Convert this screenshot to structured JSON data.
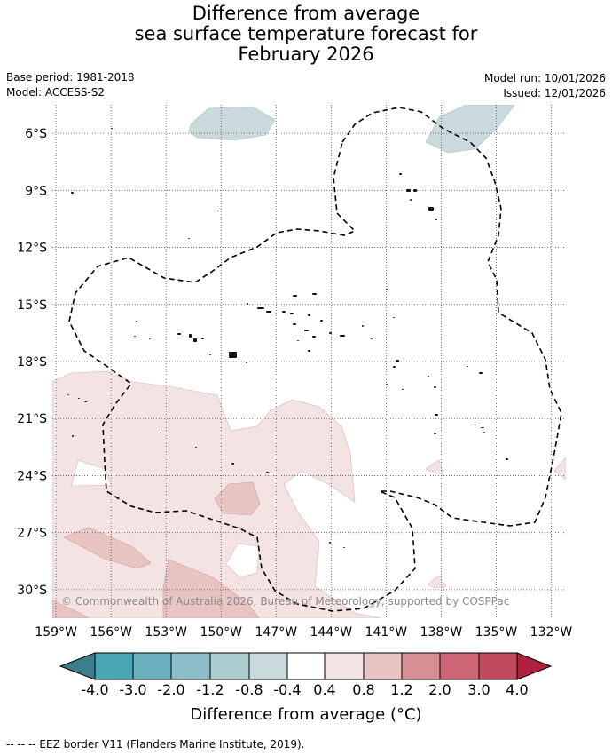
{
  "title": {
    "line1": "Difference from average",
    "line2": "sea surface temperature forecast for",
    "line3": "February 2026"
  },
  "meta": {
    "base_period": "Base period: 1981-2018",
    "model": "Model: ACCESS-S2",
    "model_run": "Model run: 10/01/2026",
    "issued": "Issued: 12/01/2026"
  },
  "map": {
    "lon_min": -159.2,
    "lon_max": -131.2,
    "lat_min": -31.5,
    "lat_max": -4.5,
    "lon_ticks": [
      -159,
      -156,
      -153,
      -150,
      -147,
      -144,
      -141,
      -138,
      -135,
      -132
    ],
    "lon_labels": [
      "159°W",
      "156°W",
      "153°W",
      "150°W",
      "147°W",
      "144°W",
      "141°W",
      "138°W",
      "135°W",
      "132°W"
    ],
    "lat_ticks": [
      -6,
      -9,
      -12,
      -15,
      -18,
      -21,
      -24,
      -27,
      -30
    ],
    "lat_labels": [
      "6°S",
      "9°S",
      "12°S",
      "15°S",
      "18°S",
      "21°S",
      "24°S",
      "27°S",
      "30°S"
    ],
    "copyright": "© Commonwealth of Australia 2026, Bureau of Meteorology, supported by COSPPac"
  },
  "colorbar": {
    "colors": [
      "#3b7f8c",
      "#4aa5b5",
      "#6ab0bf",
      "#8dbdc8",
      "#aacbcf",
      "#c9d9dc",
      "#ffffff",
      "#f3e3e3",
      "#e8c4c2",
      "#d78f96",
      "#cc6677",
      "#c24a5d",
      "#b0203f"
    ],
    "ticks": [
      "-4.0",
      "-3.0",
      "-2.0",
      "-1.2",
      "-0.8",
      "-0.4",
      "0.4",
      "0.8",
      "1.2",
      "2.0",
      "3.0",
      "4.0"
    ],
    "label": "Difference from average (°C)"
  },
  "footer": "--  --  -- EEZ border V11 (Flanders Marine Institute, 2019)."
}
